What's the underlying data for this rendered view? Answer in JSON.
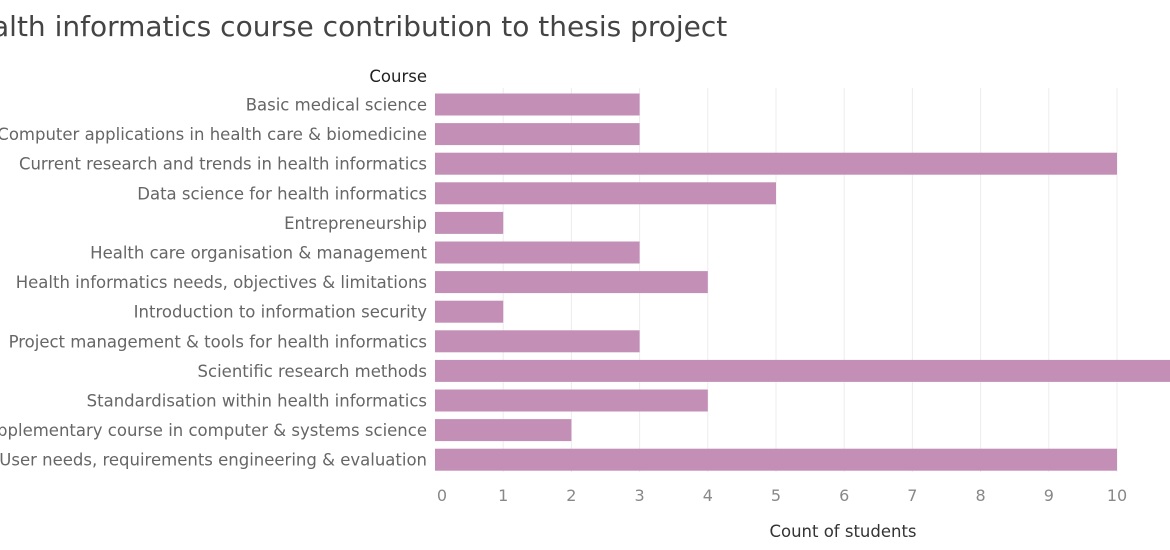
{
  "chart_data": {
    "type": "bar",
    "orientation": "horizontal",
    "title": "alth informatics course contribution to thesis project",
    "row_header": "Course",
    "xlabel": "Count of students",
    "categories": [
      "Basic medical science",
      "Computer applications in health care & biomedicine",
      "Current research and trends in health informatics",
      "Data science for health informatics",
      "Entrepreneurship",
      "Health care organisation & management",
      "Health informatics needs, objectives & limitations",
      "Introduction to information security",
      "Project management & tools for health informatics",
      "Scientific research methods",
      "Standardisation within health informatics",
      "upplementary course in computer & systems science",
      "User needs, requirements engineering & evaluation"
    ],
    "values": [
      3,
      3,
      10,
      5,
      1,
      3,
      4,
      1,
      3,
      11,
      4,
      2,
      10
    ],
    "xticks": [
      "0",
      "1",
      "2",
      "3",
      "4",
      "5",
      "6",
      "7",
      "8",
      "9",
      "10"
    ],
    "xlim": [
      0,
      10.8
    ],
    "grid": "vertical",
    "bar_color": "#c38fb6"
  }
}
